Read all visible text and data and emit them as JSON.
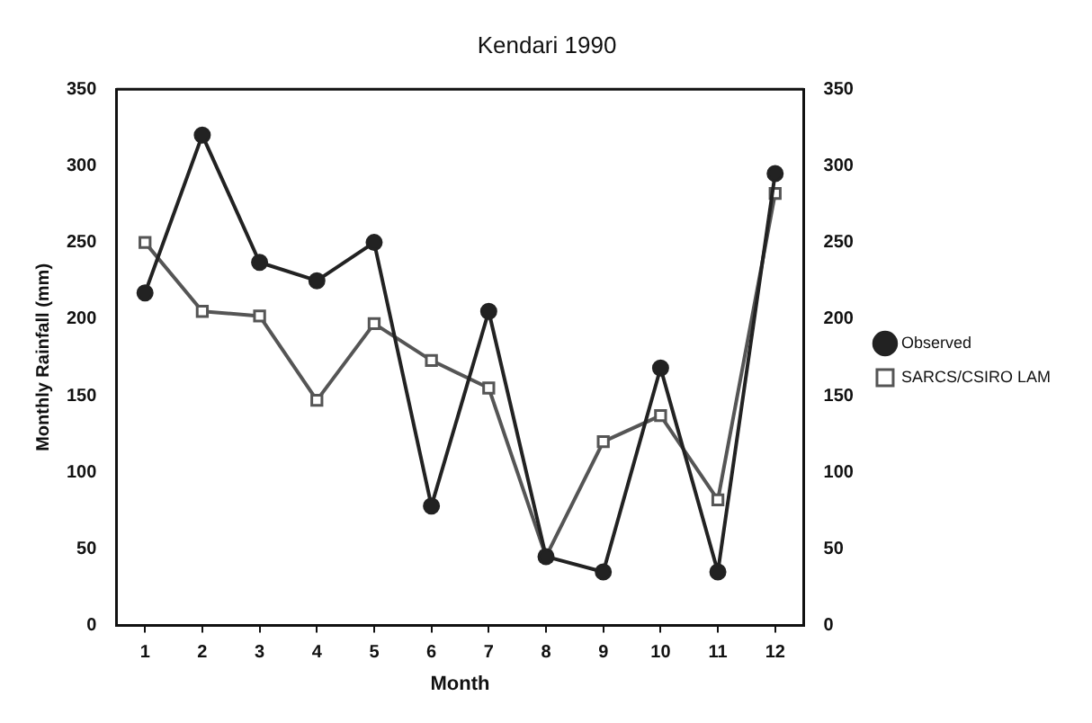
{
  "chart_data": {
    "type": "line",
    "title": "Kendari 1990",
    "xlabel": "Month",
    "ylabel": "Monthly Rainfall (mm)",
    "categories": [
      "1",
      "2",
      "3",
      "4",
      "5",
      "6",
      "7",
      "8",
      "9",
      "10",
      "11",
      "12"
    ],
    "series": [
      {
        "name": "SARCS/CSIRO LAM",
        "color": "#555555",
        "marker": "square",
        "values": [
          250,
          205,
          202,
          147,
          197,
          173,
          155,
          45,
          120,
          137,
          82,
          282
        ]
      },
      {
        "name": "Observed",
        "color": "#222222",
        "marker": "circle",
        "values": [
          217,
          320,
          237,
          225,
          250,
          78,
          205,
          45,
          35,
          168,
          35,
          295
        ]
      }
    ],
    "ylim": [
      0,
      350
    ],
    "yticks": [
      0,
      50,
      100,
      150,
      200,
      250,
      300,
      350
    ],
    "y2lim": [
      0,
      350
    ],
    "y2ticks": [
      0,
      50,
      100,
      150,
      200,
      250,
      300,
      350
    ],
    "grid": false,
    "legend": "right",
    "line_style": "solid"
  }
}
